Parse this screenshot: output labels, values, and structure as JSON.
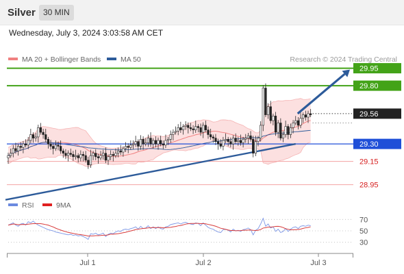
{
  "header": {
    "symbol": "Silver",
    "timeframe": "30 MIN",
    "datetime": "Wednesday, July 3, 2024 3:03:58 AM CET"
  },
  "chart_data": [
    {
      "type": "line",
      "title": "",
      "legend": {
        "placement": "top-left",
        "entries": [
          {
            "label": "MA 20 + Bollinger Bands",
            "color": "#f08080"
          },
          {
            "label": "MA 50",
            "color": "#2d5b9a"
          }
        ]
      },
      "credit": "Research © 2024 Trading Central",
      "x_ticks": [
        "Jul 1",
        "Jul 2",
        "Jul 3"
      ],
      "ylim": [
        28.83,
        30.03
      ],
      "current_price": {
        "value": 29.56,
        "label": "29.56"
      },
      "levels": [
        {
          "value": 29.95,
          "label": "29.95",
          "kind": "resistance",
          "color": "#43a318"
        },
        {
          "value": 29.8,
          "label": "29.80",
          "kind": "resistance",
          "color": "#43a318"
        },
        {
          "value": 29.3,
          "label": "29.30",
          "kind": "pivot",
          "color": "#1f4fd8"
        },
        {
          "value": 29.15,
          "label": "29.15",
          "kind": "support",
          "color": "#d62020"
        },
        {
          "value": 28.95,
          "label": "28.95",
          "kind": "support",
          "color": "#d62020"
        }
      ],
      "trendline": {
        "from": [
          0,
          28.82
        ],
        "to": [
          115,
          29.3
        ],
        "color": "#2d5b9a"
      },
      "forecast_arrow": {
        "from": [
          115,
          29.56
        ],
        "to": [
          126,
          29.95
        ],
        "color": "#2d5b9a"
      },
      "series": [
        {
          "name": "Price",
          "closes": [
            29.2,
            29.22,
            29.26,
            29.24,
            29.28,
            29.27,
            29.3,
            29.29,
            29.33,
            29.38,
            29.35,
            29.36,
            29.44,
            29.4,
            29.38,
            29.34,
            29.3,
            29.28,
            29.26,
            29.29,
            29.28,
            29.24,
            29.22,
            29.2,
            29.22,
            29.21,
            29.19,
            29.2,
            29.18,
            29.21,
            29.2,
            29.16,
            29.12,
            29.2,
            29.22,
            29.19,
            29.18,
            29.2,
            29.22,
            29.16,
            29.19,
            29.21,
            29.2,
            29.22,
            29.24,
            29.23,
            29.26,
            29.28,
            29.27,
            29.29,
            29.3,
            29.32,
            29.28,
            29.34,
            29.3,
            29.31,
            29.35,
            29.3,
            29.33,
            29.3,
            29.33,
            29.3,
            29.29,
            29.33,
            29.34,
            29.38,
            29.4,
            29.41,
            29.44,
            29.42,
            29.45,
            29.46,
            29.44,
            29.43,
            29.42,
            29.45,
            29.44,
            29.4,
            29.46,
            29.42,
            29.38,
            29.36,
            29.35,
            29.32,
            29.3,
            29.28,
            29.33,
            29.34,
            29.32,
            29.3,
            29.35,
            29.32,
            29.33,
            29.31,
            29.34,
            29.35,
            29.37,
            29.34,
            29.22,
            29.32,
            29.35,
            29.46,
            29.78,
            29.55,
            29.62,
            29.5,
            29.54,
            29.4,
            29.48,
            29.35,
            29.38,
            29.45,
            29.38,
            29.44,
            29.48,
            29.5,
            29.46,
            29.52,
            29.55,
            29.53,
            29.56,
            29.55
          ]
        },
        {
          "name": "MA 20",
          "role": "moving-average"
        },
        {
          "name": "MA 50",
          "role": "moving-average"
        }
      ]
    },
    {
      "type": "line",
      "title": "",
      "legend": {
        "placement": "top-left",
        "entries": [
          {
            "label": "RSI",
            "color": "#6b8ae0"
          },
          {
            "label": "9MA",
            "color": "#e02020"
          }
        ]
      },
      "ylim": [
        20,
        80
      ],
      "y_ticks": [
        70,
        50,
        30
      ],
      "series": [
        {
          "name": "RSI",
          "values": [
            60,
            62,
            64,
            60,
            58,
            62,
            63,
            60,
            66,
            64,
            67,
            63,
            60,
            58,
            56,
            54,
            52,
            51,
            50,
            48,
            47,
            46,
            45,
            44,
            43,
            44,
            42,
            43,
            41,
            42,
            40,
            38,
            35,
            45,
            44,
            46,
            43,
            44,
            46,
            40,
            44,
            46,
            45,
            48,
            50,
            49,
            52,
            53,
            52,
            54,
            55,
            57,
            53,
            58,
            54,
            55,
            59,
            54,
            57,
            54,
            57,
            54,
            53,
            57,
            58,
            61,
            62,
            63,
            64,
            62,
            64,
            65,
            63,
            62,
            61,
            64,
            63,
            59,
            64,
            60,
            56,
            54,
            53,
            50,
            48,
            47,
            52,
            53,
            51,
            48,
            53,
            50,
            51,
            49,
            52,
            53,
            55,
            52,
            43,
            51,
            54,
            62,
            72,
            58,
            62,
            55,
            57,
            49,
            53,
            47,
            49,
            54,
            49,
            53,
            56,
            57,
            54,
            58,
            59,
            58,
            60,
            59
          ]
        },
        {
          "name": "9MA",
          "role": "moving-average"
        }
      ]
    }
  ]
}
